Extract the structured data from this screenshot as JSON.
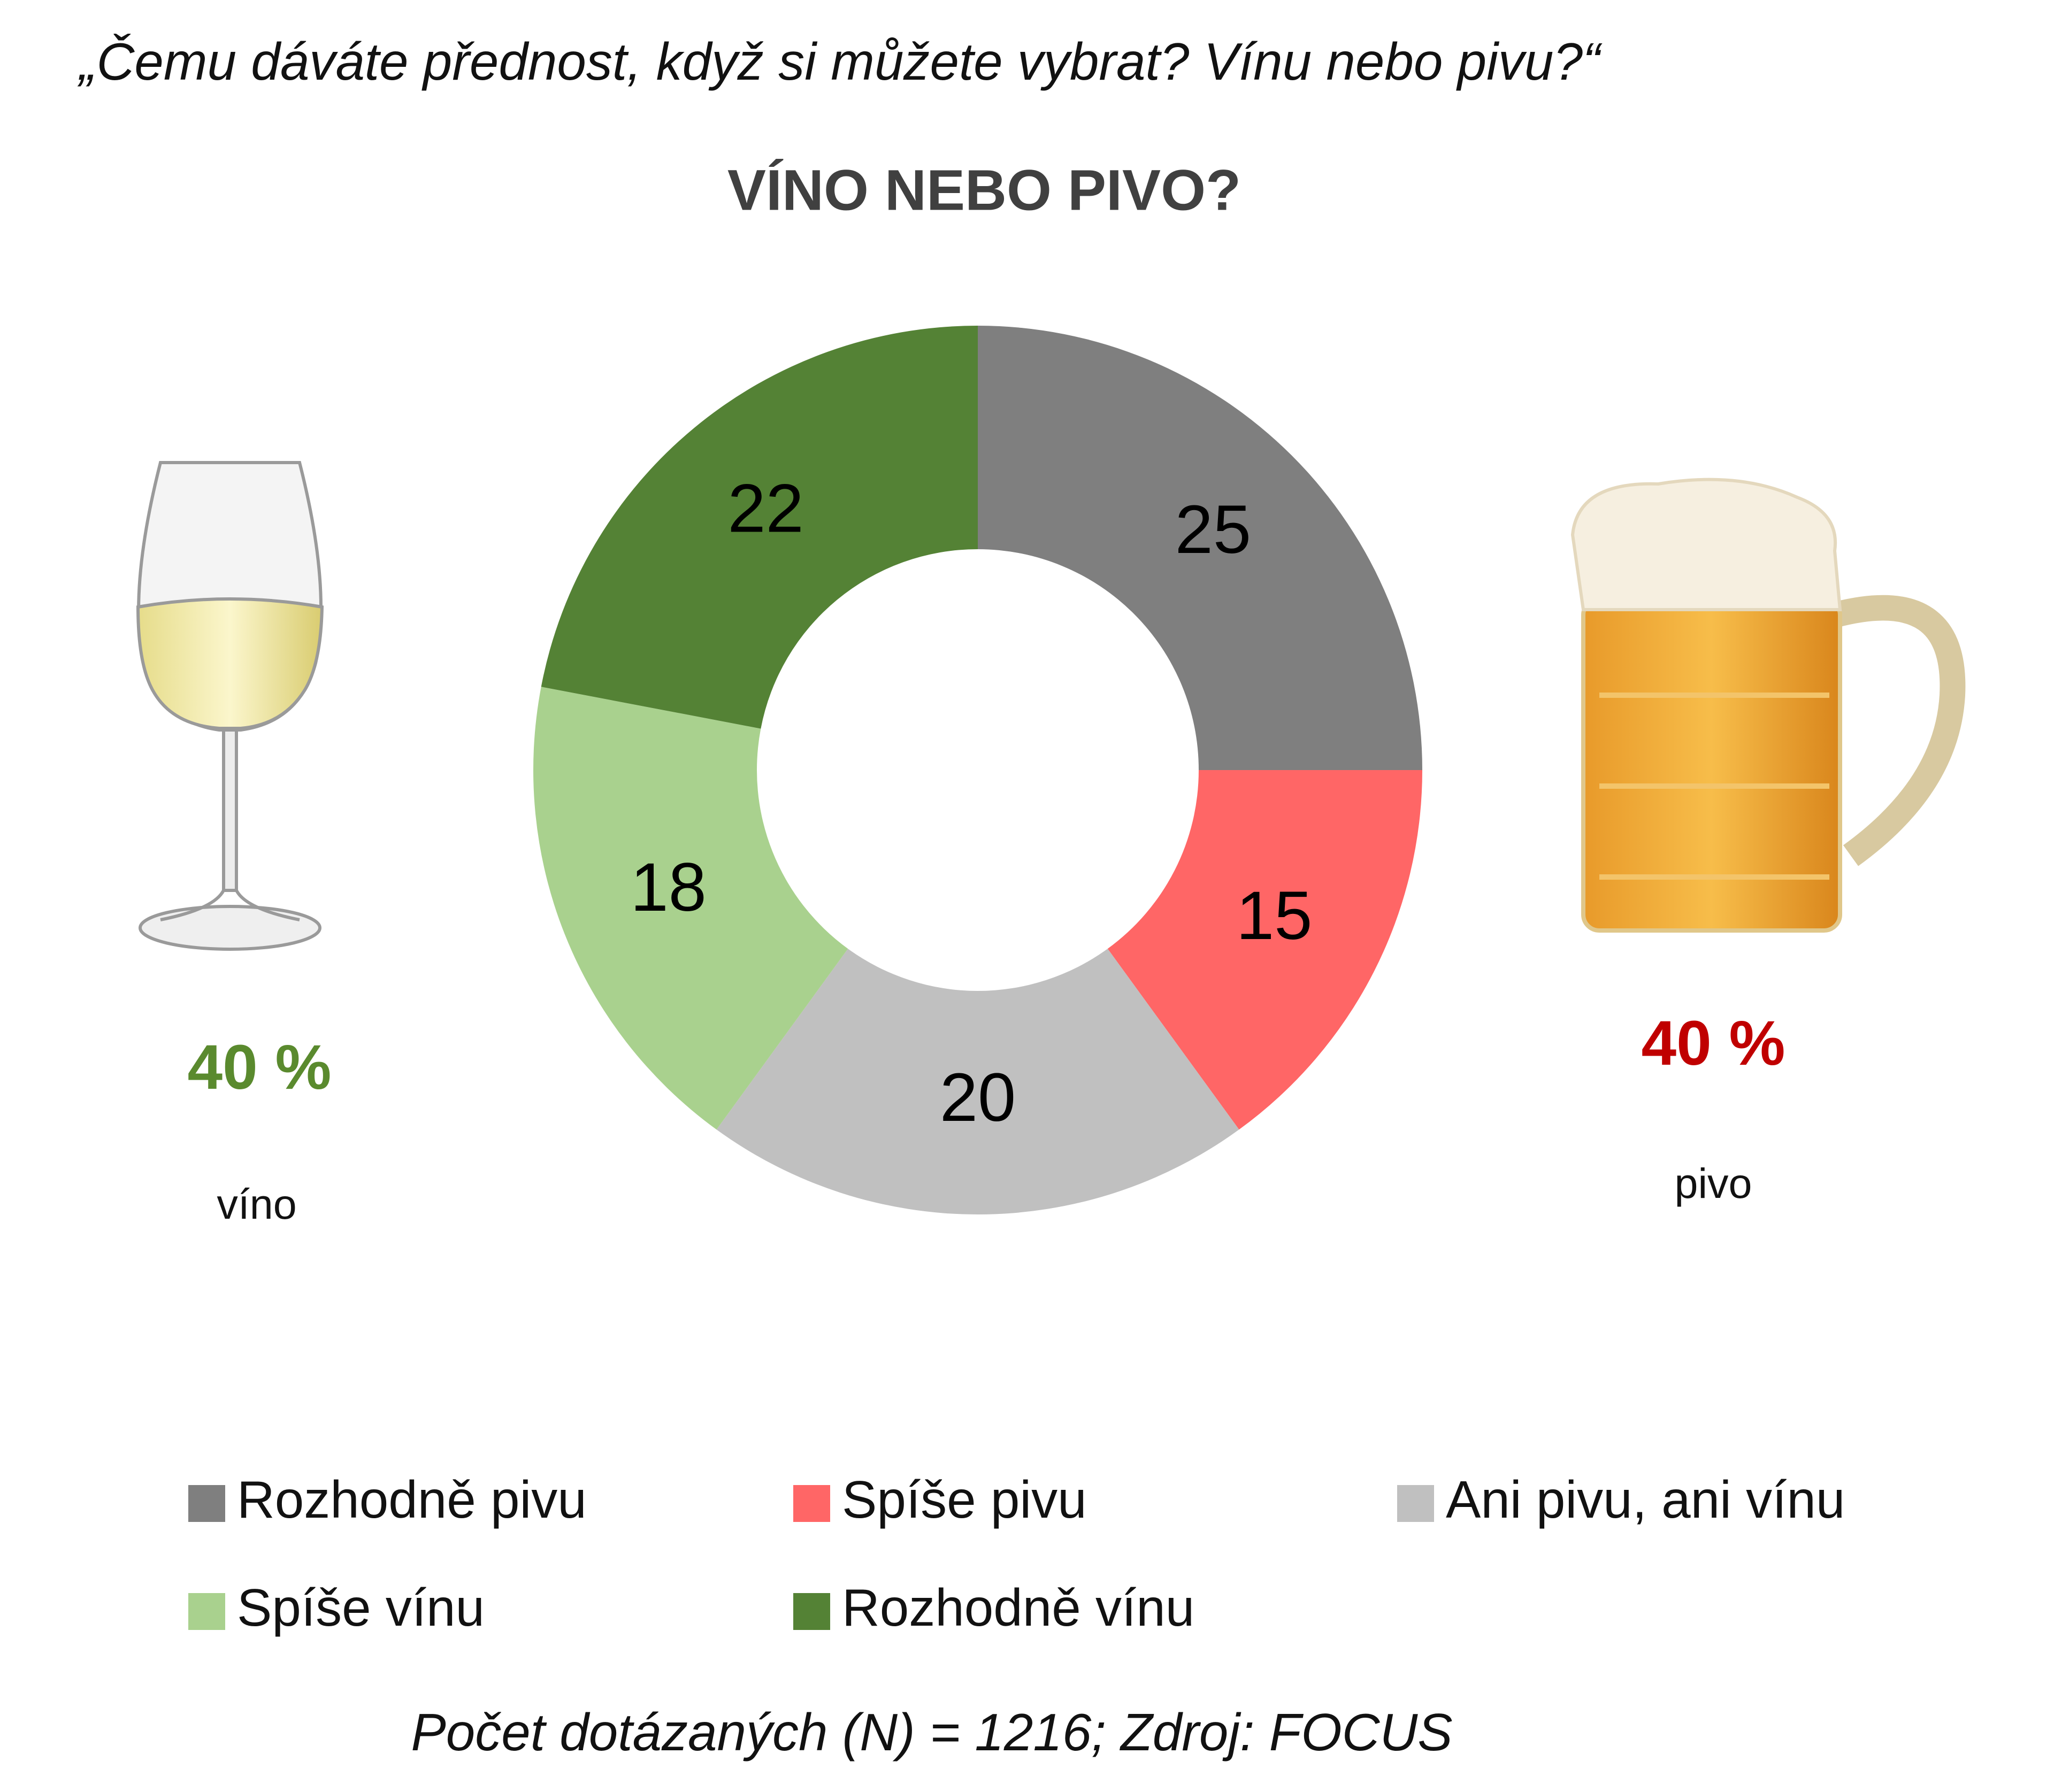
{
  "chart_data": {
    "type": "pie",
    "subtitle": "„Čemu dáváte přednost, když si můžete vybrat? Vínu nebo pivu?“",
    "title": "VÍNO NEBO PIVO?",
    "categories": [
      "Rozhodně pivu",
      "Spíše pivu",
      "Ani pivu, ani vínu",
      "Spíše vínu",
      "Rozhodně vínu"
    ],
    "values": [
      25,
      15,
      20,
      18,
      22
    ],
    "colors": [
      "#7f7f7f",
      "#ff6666",
      "#c0c0c0",
      "#a9d18e",
      "#548235"
    ],
    "donut": true,
    "annotations": [
      {
        "text": "40 %",
        "label": "víno"
      },
      {
        "text": "40 %",
        "label": "pivo"
      }
    ],
    "footnote": "Počet dotázaných (N) = 1216;  Zdroj: FOCUS"
  }
}
